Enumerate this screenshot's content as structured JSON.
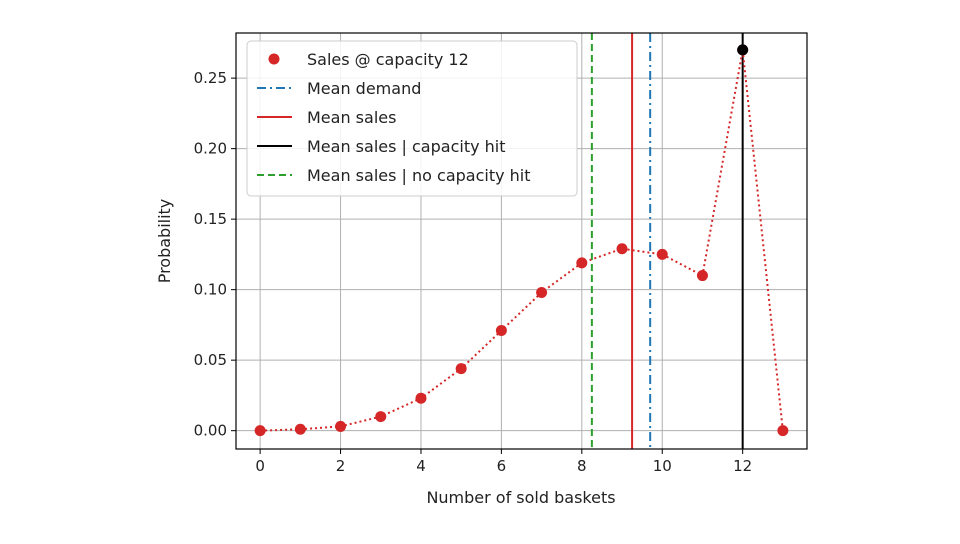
{
  "chart_data": {
    "type": "scatter",
    "title": "",
    "xlabel": "Number of sold baskets",
    "ylabel": "Probability",
    "xlim": [
      -0.6,
      13.6
    ],
    "ylim": [
      -0.013,
      0.282
    ],
    "xticks": [
      0,
      2,
      4,
      6,
      8,
      10,
      12
    ],
    "xtick_labels": [
      "0",
      "2",
      "4",
      "6",
      "8",
      "10",
      "12"
    ],
    "yticks": [
      0.0,
      0.05,
      0.1,
      0.15,
      0.2,
      0.25
    ],
    "ytick_labels": [
      "0.00",
      "0.05",
      "0.10",
      "0.15",
      "0.20",
      "0.25"
    ],
    "grid": true,
    "legend_position": "upper-left",
    "series": [
      {
        "name": "Sales @ capacity 12",
        "style": "dotted-markers",
        "color": "#d62728",
        "x": [
          0,
          1,
          2,
          3,
          4,
          5,
          6,
          7,
          8,
          9,
          10,
          11,
          12,
          13
        ],
        "y": [
          0.0,
          0.001,
          0.003,
          0.01,
          0.023,
          0.044,
          0.071,
          0.098,
          0.119,
          0.129,
          0.125,
          0.11,
          0.27,
          0.0
        ]
      }
    ],
    "special_point": {
      "x": 12,
      "y": 0.27,
      "color": "#000000"
    },
    "vlines": [
      {
        "name": "Mean demand",
        "x": 9.7,
        "color": "#1f77b4",
        "style": "dashdot"
      },
      {
        "name": "Mean sales",
        "x": 9.25,
        "color": "#d62728",
        "style": "solid"
      },
      {
        "name": "Mean sales | capacity hit",
        "x": 12.0,
        "color": "#000000",
        "style": "solid"
      },
      {
        "name": "Mean sales | no capacity hit",
        "x": 8.25,
        "color": "#2ca02c",
        "style": "dashed"
      }
    ],
    "legend": [
      {
        "label": "Sales @ capacity 12",
        "kind": "marker",
        "color": "#d62728"
      },
      {
        "label": "Mean demand",
        "kind": "dashdot",
        "color": "#1f77b4"
      },
      {
        "label": "Mean sales",
        "kind": "solid",
        "color": "#d62728"
      },
      {
        "label": "Mean sales | capacity hit",
        "kind": "solid",
        "color": "#000000"
      },
      {
        "label": "Mean sales | no capacity hit",
        "kind": "dashed",
        "color": "#2ca02c"
      }
    ]
  }
}
